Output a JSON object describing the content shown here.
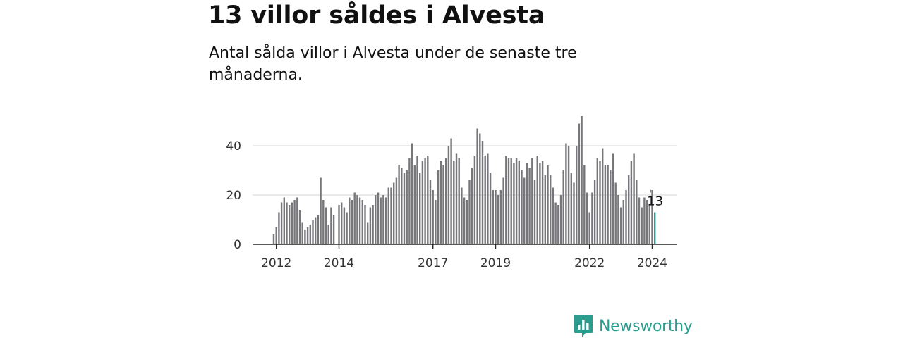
{
  "title": "13 villor såldes i Alvesta",
  "subtitle": "Antal sålda villor i Alvesta under de senaste tre månaderna.",
  "brand": {
    "name": "Newsworthy",
    "logo_icon": "bar-chart-speech-bubble-icon",
    "color": "#2a9d8f"
  },
  "colors": {
    "bar": "#77777b",
    "highlight": "#2a9d8f",
    "grid": "#dddddd",
    "axis": "#222222"
  },
  "chart_data": {
    "type": "bar",
    "title": "",
    "xlabel": "",
    "ylabel": "",
    "ylim": [
      0,
      52
    ],
    "yticks": [
      0,
      20,
      40
    ],
    "xtick_labels": [
      "2012",
      "2014",
      "2017",
      "2019",
      "2022",
      "2024"
    ],
    "grid": true,
    "start": "2011-12",
    "frequency": "monthly",
    "values": [
      4,
      7,
      13,
      17,
      19,
      17,
      16,
      17,
      18,
      19,
      14,
      9,
      6,
      7,
      8,
      10,
      11,
      12,
      27,
      18,
      15,
      8,
      15,
      12,
      0,
      16,
      17,
      15,
      13,
      19,
      18,
      21,
      20,
      19,
      18,
      16,
      9,
      15,
      16,
      20,
      21,
      19,
      20,
      19,
      23,
      23,
      25,
      27,
      32,
      31,
      29,
      30,
      35,
      41,
      32,
      36,
      29,
      34,
      35,
      36,
      26,
      22,
      18,
      30,
      34,
      32,
      35,
      40,
      43,
      34,
      37,
      35,
      23,
      19,
      18,
      26,
      31,
      36,
      47,
      45,
      42,
      36,
      37,
      29,
      22,
      22,
      20,
      22,
      27,
      36,
      35,
      35,
      33,
      35,
      34,
      30,
      27,
      33,
      31,
      35,
      26,
      36,
      33,
      34,
      28,
      32,
      28,
      23,
      17,
      16,
      20,
      30,
      41,
      40,
      29,
      25,
      40,
      49,
      52,
      32,
      21,
      13,
      21,
      26,
      35,
      34,
      39,
      32,
      32,
      30,
      37,
      25,
      20,
      15,
      18,
      22,
      28,
      34,
      37,
      26,
      19,
      15,
      19,
      18,
      16,
      22,
      13
    ],
    "highlight_index": 146,
    "annotation": {
      "text": "13",
      "index": 146
    }
  }
}
